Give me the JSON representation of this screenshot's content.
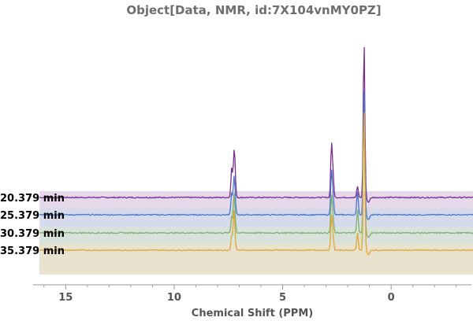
{
  "chart_data": {
    "type": "line",
    "title": "Object[Data, NMR, id:7X104vnMY0PZ]",
    "xlabel": "Chemical Shift  (PPM)",
    "ylabel": "",
    "xlim": [
      16.5,
      -3.7
    ],
    "x_reversed": true,
    "xticks": [
      15,
      10,
      5,
      0
    ],
    "baseline_range_ppm": [
      16.2,
      -3.8
    ],
    "series": [
      {
        "name": "20.379 min",
        "color": "#7b2d8e",
        "band_color": "#dccbe2",
        "peaks": [
          {
            "x": 7.35,
            "height": 38
          },
          {
            "x": 7.25,
            "height": 44
          },
          {
            "x": 7.2,
            "height": 34
          },
          {
            "x": 2.75,
            "height": 66
          },
          {
            "x": 2.68,
            "height": 30
          },
          {
            "x": 1.55,
            "height": 14
          },
          {
            "x": 1.25,
            "height": 195
          },
          {
            "x": 1.2,
            "height": 12
          }
        ]
      },
      {
        "name": "25.379 min",
        "color": "#4a78c8",
        "band_color": "#cfdbec",
        "peaks": [
          {
            "x": 7.35,
            "height": 28
          },
          {
            "x": 7.25,
            "height": 40
          },
          {
            "x": 7.2,
            "height": 22
          },
          {
            "x": 2.75,
            "height": 55
          },
          {
            "x": 2.68,
            "height": 24
          },
          {
            "x": 1.55,
            "height": 30
          },
          {
            "x": 1.25,
            "height": 160
          },
          {
            "x": 1.2,
            "height": 10
          }
        ]
      },
      {
        "name": "30.379 min",
        "color": "#7fb36a",
        "band_color": "#d7e4d5",
        "peaks": [
          {
            "x": 7.35,
            "height": 20
          },
          {
            "x": 7.25,
            "height": 42
          },
          {
            "x": 7.2,
            "height": 18
          },
          {
            "x": 2.75,
            "height": 46
          },
          {
            "x": 2.68,
            "height": 20
          },
          {
            "x": 1.55,
            "height": 30
          },
          {
            "x": 1.25,
            "height": 150
          },
          {
            "x": 1.2,
            "height": 8
          }
        ]
      },
      {
        "name": "35.379 min",
        "color": "#e0a830",
        "band_color": "#eee1cb",
        "peaks": [
          {
            "x": 7.35,
            "height": 18
          },
          {
            "x": 7.25,
            "height": 44
          },
          {
            "x": 7.2,
            "height": 16
          },
          {
            "x": 2.75,
            "height": 42
          },
          {
            "x": 2.68,
            "height": 18
          },
          {
            "x": 1.55,
            "height": 22
          },
          {
            "x": 1.25,
            "height": 180
          },
          {
            "x": 1.2,
            "height": 8
          }
        ]
      }
    ]
  }
}
